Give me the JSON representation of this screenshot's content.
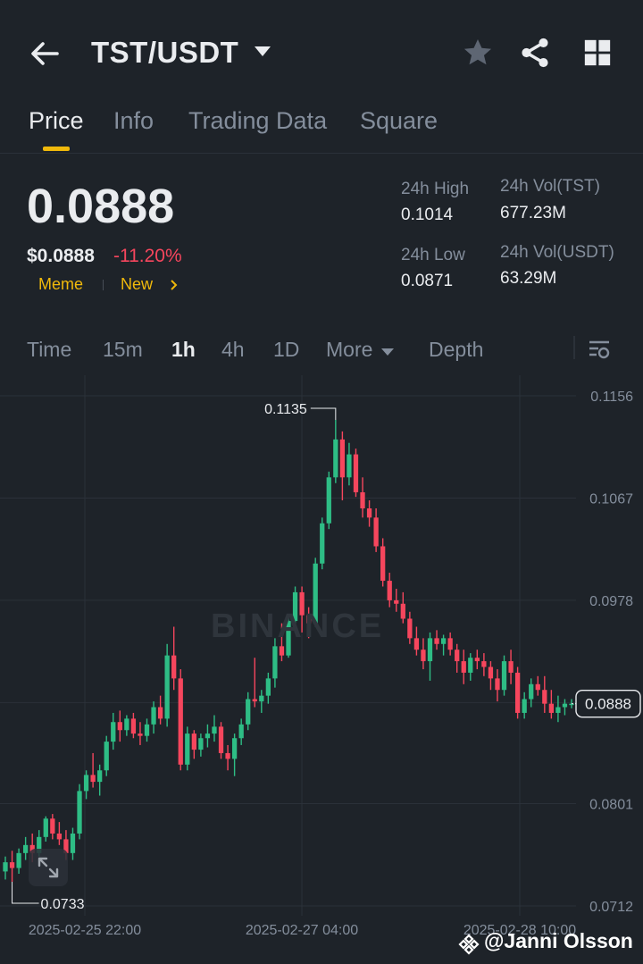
{
  "header": {
    "pair": "TST/USDT",
    "icons": [
      "arrow-left-icon",
      "caret-down-icon",
      "star-icon",
      "share-icon",
      "grid-icon"
    ]
  },
  "tabs": [
    {
      "label": "Price",
      "active": true
    },
    {
      "label": "Info",
      "active": false
    },
    {
      "label": "Trading Data",
      "active": false
    },
    {
      "label": "Square",
      "active": false
    }
  ],
  "ticker": {
    "last_price": "0.0888",
    "usd_price": "$0.0888",
    "change_pct": "-11.20%",
    "tags": [
      "Meme",
      "New"
    ],
    "high_label": "24h High",
    "high_value": "0.1014",
    "low_label": "24h Low",
    "low_value": "0.0871",
    "vol_base_label": "24h Vol(TST)",
    "vol_base_value": "677.23M",
    "vol_quote_label": "24h Vol(USDT)",
    "vol_quote_value": "63.29M"
  },
  "intervals": {
    "items": [
      "Time",
      "15m",
      "1h",
      "4h",
      "1D",
      "More",
      "Depth"
    ],
    "active": "1h"
  },
  "colors": {
    "up": "#2ebd85",
    "down": "#f6465d",
    "accent": "#f0b90b",
    "bg": "#1e2329"
  },
  "chart_data": {
    "type": "candlestick",
    "y_ticks": [
      "0.1156",
      "0.1067",
      "0.0978",
      "0.0889",
      "0.0801",
      "0.0712"
    ],
    "ylim": [
      0.0712,
      0.1156
    ],
    "x_ticks": [
      "2025-02-25 22:00",
      "2025-02-27 04:00",
      "2025-02-28 10:00"
    ],
    "max_label": "0.1135",
    "min_label": "0.0733",
    "current_price": "0.0888",
    "grid": true,
    "candles": [
      [
        0.0742,
        0.0755,
        0.0735,
        0.075
      ],
      [
        0.075,
        0.076,
        0.0733,
        0.0745
      ],
      [
        0.0745,
        0.0762,
        0.074,
        0.0758
      ],
      [
        0.0758,
        0.0772,
        0.0752,
        0.0765
      ],
      [
        0.0765,
        0.0775,
        0.075,
        0.0758
      ],
      [
        0.0758,
        0.0778,
        0.0755,
        0.0772
      ],
      [
        0.0772,
        0.079,
        0.0768,
        0.0788
      ],
      [
        0.0788,
        0.0792,
        0.077,
        0.0775
      ],
      [
        0.0775,
        0.0785,
        0.0765,
        0.077
      ],
      [
        0.077,
        0.0778,
        0.0752,
        0.0758
      ],
      [
        0.0758,
        0.078,
        0.0752,
        0.0775
      ],
      [
        0.0775,
        0.0818,
        0.077,
        0.0812
      ],
      [
        0.0812,
        0.083,
        0.0805,
        0.0826
      ],
      [
        0.0826,
        0.0845,
        0.0815,
        0.082
      ],
      [
        0.082,
        0.0835,
        0.0808,
        0.083
      ],
      [
        0.083,
        0.086,
        0.0825,
        0.0855
      ],
      [
        0.0855,
        0.088,
        0.0848,
        0.0872
      ],
      [
        0.0872,
        0.0882,
        0.0855,
        0.0865
      ],
      [
        0.0865,
        0.0878,
        0.086,
        0.0875
      ],
      [
        0.0875,
        0.088,
        0.0858,
        0.0862
      ],
      [
        0.0862,
        0.0872,
        0.0852,
        0.086
      ],
      [
        0.086,
        0.0875,
        0.0855,
        0.087
      ],
      [
        0.087,
        0.089,
        0.0862,
        0.0885
      ],
      [
        0.0885,
        0.0895,
        0.087,
        0.0875
      ],
      [
        0.0875,
        0.094,
        0.0868,
        0.093
      ],
      [
        0.093,
        0.0955,
        0.09,
        0.091
      ],
      [
        0.091,
        0.0918,
        0.083,
        0.0835
      ],
      [
        0.0835,
        0.0868,
        0.083,
        0.0862
      ],
      [
        0.0862,
        0.0865,
        0.084,
        0.0848
      ],
      [
        0.0848,
        0.0862,
        0.0842,
        0.0858
      ],
      [
        0.0858,
        0.087,
        0.085,
        0.0862
      ],
      [
        0.0862,
        0.0878,
        0.0855,
        0.0868
      ],
      [
        0.0868,
        0.0872,
        0.084,
        0.0845
      ],
      [
        0.0845,
        0.0852,
        0.083,
        0.084
      ],
      [
        0.084,
        0.0862,
        0.0825,
        0.0858
      ],
      [
        0.0858,
        0.0875,
        0.0852,
        0.087
      ],
      [
        0.087,
        0.0898,
        0.0865,
        0.0892
      ],
      [
        0.0892,
        0.0928,
        0.0885,
        0.089
      ],
      [
        0.089,
        0.09,
        0.088,
        0.0895
      ],
      [
        0.0895,
        0.0915,
        0.0888,
        0.091
      ],
      [
        0.091,
        0.0945,
        0.0902,
        0.0938
      ],
      [
        0.0938,
        0.0958,
        0.0925,
        0.093
      ],
      [
        0.093,
        0.0965,
        0.0928,
        0.096
      ],
      [
        0.096,
        0.099,
        0.095,
        0.0985
      ],
      [
        0.0985,
        0.099,
        0.095,
        0.0965
      ],
      [
        0.0965,
        0.0972,
        0.0945,
        0.0958
      ],
      [
        0.0958,
        0.1015,
        0.0955,
        0.101
      ],
      [
        0.101,
        0.105,
        0.1005,
        0.1045
      ],
      [
        0.1045,
        0.109,
        0.104,
        0.1085
      ],
      [
        0.1085,
        0.1135,
        0.108,
        0.1118
      ],
      [
        0.1118,
        0.1125,
        0.1065,
        0.1085
      ],
      [
        0.1085,
        0.1115,
        0.1078,
        0.1105
      ],
      [
        0.1105,
        0.111,
        0.1068,
        0.1072
      ],
      [
        0.1072,
        0.1085,
        0.105,
        0.1058
      ],
      [
        0.1058,
        0.1065,
        0.1042,
        0.105
      ],
      [
        0.105,
        0.1058,
        0.102,
        0.1025
      ],
      [
        0.1025,
        0.1032,
        0.099,
        0.0995
      ],
      [
        0.0995,
        0.1002,
        0.0972,
        0.0978
      ],
      [
        0.0978,
        0.0988,
        0.0968,
        0.0975
      ],
      [
        0.0975,
        0.0985,
        0.0958,
        0.0962
      ],
      [
        0.0962,
        0.0968,
        0.094,
        0.0945
      ],
      [
        0.0945,
        0.0955,
        0.093,
        0.0935
      ],
      [
        0.0935,
        0.0945,
        0.0918,
        0.0925
      ],
      [
        0.0925,
        0.095,
        0.0908,
        0.0945
      ],
      [
        0.0945,
        0.0952,
        0.0935,
        0.094
      ],
      [
        0.094,
        0.0948,
        0.093,
        0.0945
      ],
      [
        0.0945,
        0.095,
        0.093,
        0.0935
      ],
      [
        0.0935,
        0.094,
        0.0915,
        0.0925
      ],
      [
        0.0925,
        0.0935,
        0.0905,
        0.0915
      ],
      [
        0.0915,
        0.0932,
        0.0908,
        0.0928
      ],
      [
        0.0928,
        0.0935,
        0.0918,
        0.0925
      ],
      [
        0.0925,
        0.0932,
        0.0912,
        0.092
      ],
      [
        0.092,
        0.0925,
        0.09,
        0.091
      ],
      [
        0.091,
        0.0918,
        0.089,
        0.09
      ],
      [
        0.09,
        0.093,
        0.0895,
        0.0925
      ],
      [
        0.0925,
        0.0935,
        0.0905,
        0.0915
      ],
      [
        0.0915,
        0.092,
        0.0875,
        0.088
      ],
      [
        0.088,
        0.0898,
        0.0875,
        0.0892
      ],
      [
        0.0892,
        0.091,
        0.0885,
        0.0905
      ],
      [
        0.0905,
        0.0912,
        0.0895,
        0.09
      ],
      [
        0.09,
        0.0912,
        0.088,
        0.0888
      ],
      [
        0.0888,
        0.09,
        0.0875,
        0.088
      ],
      [
        0.088,
        0.0895,
        0.0872,
        0.0885
      ],
      [
        0.0885,
        0.0892,
        0.0878,
        0.0888
      ],
      [
        0.0888,
        0.0892,
        0.0884,
        0.0888
      ]
    ]
  },
  "watermark": "BINANCE",
  "attribution": "@Janni Olsson"
}
